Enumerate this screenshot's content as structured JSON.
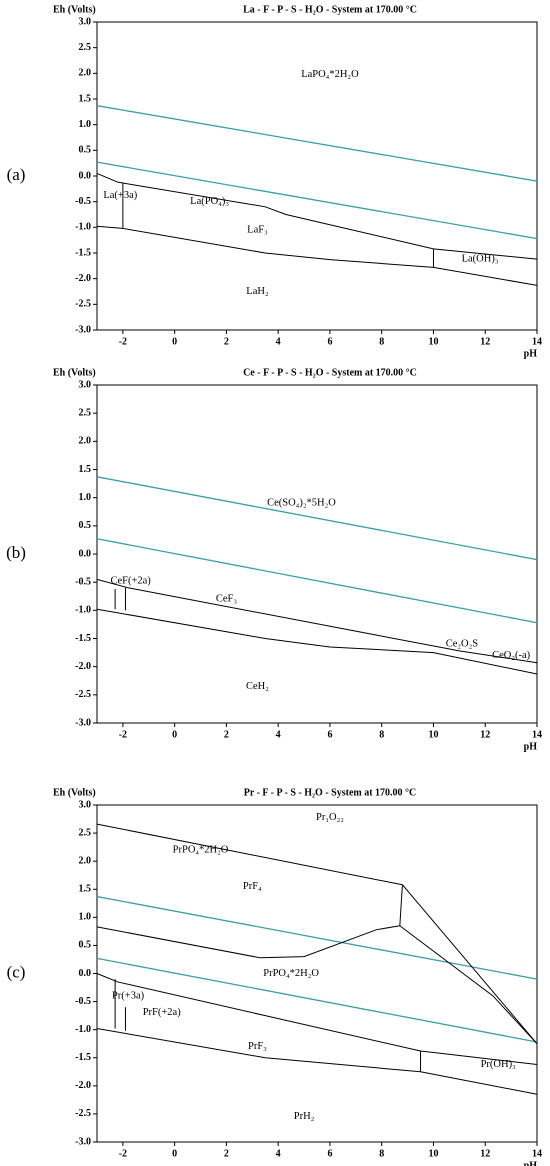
{
  "chart_data": [
    {
      "type": "line",
      "panel": "(a)",
      "title": "La - F - P - S - H₂O - System at 170.00 °C",
      "y_label": "Eh (Volts)",
      "x_label": "pH",
      "xlim": [
        -3,
        14
      ],
      "ylim": [
        -3,
        3
      ],
      "xticks": [
        -2,
        0,
        2,
        4,
        6,
        8,
        10,
        12,
        14
      ],
      "yticks": [
        {
          "value": -3,
          "label": "-3.0"
        },
        -2.5,
        {
          "value": -2,
          "label": "-2.0"
        },
        -1.5,
        {
          "value": -1,
          "label": "-1.0"
        },
        -0.5,
        {
          "value": 0,
          "label": "0.0"
        },
        0.5,
        {
          "value": 1,
          "label": "1.0"
        },
        1.5,
        {
          "value": 2,
          "label": "2.0"
        },
        2.5,
        {
          "value": 3,
          "label": "3.0"
        }
      ],
      "annotations": [
        "LaPO₄*2H₂O",
        "La(+3a)",
        "La(PO₄)₃",
        "LaF₃",
        "La(OH)₃",
        "LaH₂"
      ],
      "series": [
        {
          "color": "#3a9ea5",
          "x": [
            -3,
            14
          ],
          "values": [
            1.37,
            -0.1
          ]
        },
        {
          "color": "#3a9ea5",
          "x": [
            -3,
            14
          ],
          "values": [
            0.27,
            -1.22
          ]
        },
        {
          "color": "#000000",
          "x": [
            -3,
            -2.2,
            3.5,
            4.3,
            10,
            14
          ],
          "values": [
            0.05,
            -0.12,
            -0.6,
            -0.75,
            -1.42,
            -1.62
          ]
        },
        {
          "color": "#000000",
          "x": [
            -2,
            -2
          ],
          "values": [
            -0.14,
            -1.01
          ]
        },
        {
          "color": "#000000",
          "x": [
            -3,
            -2,
            3.5,
            6,
            10,
            14
          ],
          "values": [
            -0.98,
            -1.02,
            -1.5,
            -1.63,
            -1.78,
            -2.13
          ]
        },
        {
          "color": "#000000",
          "x": [
            10,
            10
          ],
          "values": [
            -1.42,
            -1.78
          ]
        }
      ]
    },
    {
      "type": "line",
      "panel": "(b)",
      "title": "Ce - F - P - S - H₂O - System at 170.00 °C",
      "y_label": "Eh (Volts)",
      "x_label": "pH",
      "xlim": [
        -3,
        14
      ],
      "ylim": [
        -3,
        3
      ],
      "xticks": [
        -2,
        0,
        2,
        4,
        6,
        8,
        10,
        12,
        14
      ],
      "yticks": [
        {
          "value": -3,
          "label": "-3.0"
        },
        -2.5,
        {
          "value": -2,
          "label": "-2.0"
        },
        -1.5,
        {
          "value": -1,
          "label": "-1.0"
        },
        -0.5,
        {
          "value": 0,
          "label": "0.0"
        },
        0.5,
        {
          "value": 1,
          "label": "1.0"
        },
        1.5,
        {
          "value": 2,
          "label": "2.0"
        },
        2.5,
        {
          "value": 3,
          "label": "3.0"
        }
      ],
      "annotations": [
        "Ce(SO₄)₂*5H₂O",
        "CeF(+2a)",
        "CeF₃",
        "Ce₂O₂S",
        "CeO₂(-a)",
        "CeH₂"
      ],
      "series": [
        {
          "color": "#3a9ea5",
          "x": [
            -3,
            14
          ],
          "values": [
            1.37,
            -0.1
          ]
        },
        {
          "color": "#3a9ea5",
          "x": [
            -3,
            14
          ],
          "values": [
            0.27,
            -1.22
          ]
        },
        {
          "color": "#000000",
          "x": [
            -3,
            -1.8,
            11,
            14
          ],
          "values": [
            -0.45,
            -0.6,
            -1.72,
            -1.93
          ]
        },
        {
          "color": "#000000",
          "x": [
            -2.3,
            -2.3
          ],
          "values": [
            -0.62,
            -0.98
          ]
        },
        {
          "color": "#000000",
          "x": [
            -1.9,
            -1.9
          ],
          "values": [
            -0.6,
            -1.0
          ]
        },
        {
          "color": "#000000",
          "x": [
            -3,
            3.5,
            6,
            10,
            14
          ],
          "values": [
            -0.98,
            -1.5,
            -1.65,
            -1.75,
            -2.13
          ]
        }
      ]
    },
    {
      "type": "line",
      "panel": "(c)",
      "title": "Pr - F - P - S - H₂O - System at 170.00 °C",
      "y_label": "Eh (Volts)",
      "x_label": "pH",
      "xlim": [
        -3,
        14
      ],
      "ylim": [
        -3,
        3
      ],
      "xticks": [
        -2,
        0,
        2,
        4,
        6,
        8,
        10,
        12,
        14
      ],
      "yticks": [
        {
          "value": -3,
          "label": "-3.0"
        },
        -2.5,
        {
          "value": -2,
          "label": "-2.0"
        },
        -1.5,
        {
          "value": -1,
          "label": "-1.0"
        },
        -0.5,
        {
          "value": 0,
          "label": "0.0"
        },
        0.5,
        {
          "value": 1,
          "label": "1.0"
        },
        1.5,
        {
          "value": 2,
          "label": "2.0"
        },
        2.5,
        {
          "value": 3,
          "label": "3.0"
        }
      ],
      "annotations": [
        "Pr₁O₂₂",
        "PrPO₄*2H₂O",
        "PrF₄",
        "PrPO₄*2H₂O",
        "Pr(+3a)",
        "PrF(+2a)",
        "PrF₃",
        "Pr(OH)₃",
        "PrH₂"
      ],
      "series": [
        {
          "color": "#3a9ea5",
          "x": [
            -3,
            14
          ],
          "values": [
            1.37,
            -0.1
          ]
        },
        {
          "color": "#3a9ea5",
          "x": [
            -3,
            14
          ],
          "values": [
            0.27,
            -1.22
          ]
        },
        {
          "color": "#000000",
          "x": [
            -3,
            8.8
          ],
          "values": [
            2.66,
            1.58
          ]
        },
        {
          "color": "#000000",
          "x": [
            8.8,
            8.7
          ],
          "values": [
            1.58,
            0.85
          ]
        },
        {
          "color": "#000000",
          "x": [
            -3,
            3.3,
            5,
            7.8,
            8.7
          ],
          "values": [
            0.83,
            0.28,
            0.3,
            0.78,
            0.85
          ]
        },
        {
          "color": "#000000",
          "x": [
            8.7,
            12.3,
            14
          ],
          "values": [
            0.85,
            -0.4,
            -1.25
          ]
        },
        {
          "color": "#000000",
          "x": [
            8.8,
            14
          ],
          "values": [
            1.58,
            -1.25
          ]
        },
        {
          "color": "#000000",
          "x": [
            -3,
            -2.2,
            3.5,
            9.5,
            14
          ],
          "values": [
            0.0,
            -0.15,
            -0.75,
            -1.38,
            -1.62
          ]
        },
        {
          "color": "#000000",
          "x": [
            -3,
            -3
          ],
          "values": [
            -0.45,
            -0.98
          ]
        },
        {
          "color": "#000000",
          "x": [
            -2.3,
            -2.3
          ],
          "values": [
            -0.1,
            -0.98
          ]
        },
        {
          "color": "#000000",
          "x": [
            -1.9,
            -1.9
          ],
          "values": [
            -0.6,
            -1.02
          ]
        },
        {
          "color": "#000000",
          "x": [
            -3,
            3.5,
            9.5,
            14
          ],
          "values": [
            -0.98,
            -1.5,
            -1.75,
            -2.15
          ]
        },
        {
          "color": "#000000",
          "x": [
            9.5,
            9.5
          ],
          "values": [
            -1.38,
            -1.75
          ]
        }
      ]
    }
  ]
}
